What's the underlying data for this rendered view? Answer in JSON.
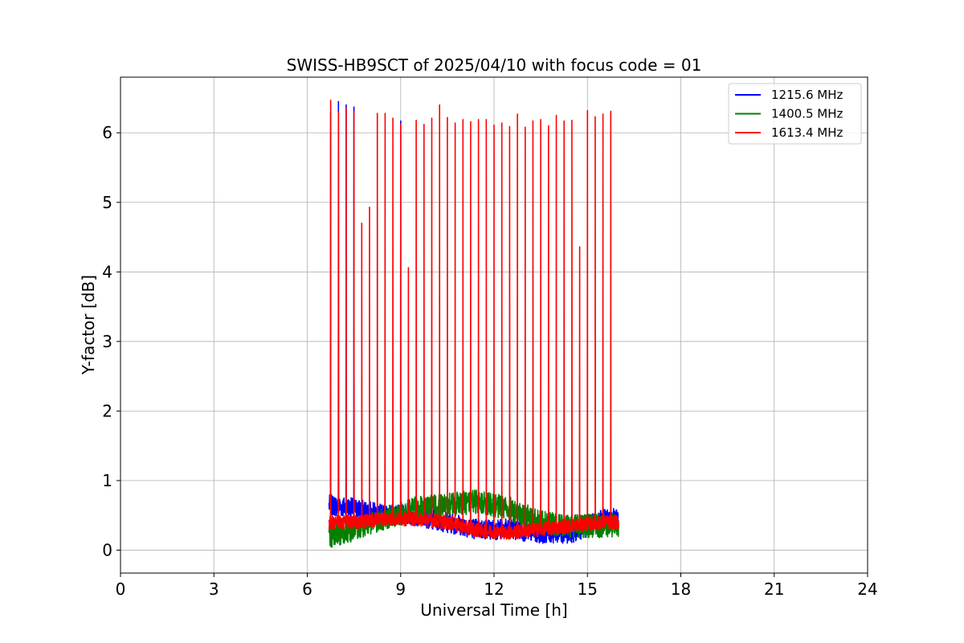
{
  "chart_data": {
    "type": "line",
    "title": "SWISS-HB9SCT of 2025/04/10 with focus code = 01",
    "xlabel": "Universal Time [h]",
    "ylabel": "Y-factor [dB]",
    "xlim": [
      0,
      24
    ],
    "ylim": [
      -0.33,
      6.8
    ],
    "xticks": [
      0,
      3,
      6,
      9,
      12,
      15,
      18,
      21,
      24
    ],
    "yticks": [
      0,
      1,
      2,
      3,
      4,
      5,
      6
    ],
    "grid": true,
    "legend_position": "top-right",
    "series": [
      {
        "name": "1215.6 MHz",
        "color": "#0000ff",
        "baseline": [
          [
            6.7,
            0.65
          ],
          [
            7.5,
            0.6
          ],
          [
            8.5,
            0.5
          ],
          [
            9.5,
            0.5
          ],
          [
            10.5,
            0.4
          ],
          [
            11.5,
            0.3
          ],
          [
            12.5,
            0.3
          ],
          [
            13.5,
            0.25
          ],
          [
            14.5,
            0.25
          ],
          [
            15.5,
            0.45
          ],
          [
            16.0,
            0.45
          ]
        ],
        "noise": 0.15,
        "peaks": [
          [
            6.75,
            6.3
          ],
          [
            7.0,
            6.45
          ],
          [
            7.25,
            6.4
          ],
          [
            7.5,
            6.37
          ],
          [
            9.0,
            6.17
          ]
        ]
      },
      {
        "name": "1400.5 MHz",
        "color": "#008000",
        "baseline": [
          [
            6.7,
            0.2
          ],
          [
            7.5,
            0.3
          ],
          [
            8.5,
            0.45
          ],
          [
            9.5,
            0.6
          ],
          [
            10.5,
            0.65
          ],
          [
            11.5,
            0.7
          ],
          [
            12.5,
            0.6
          ],
          [
            13.5,
            0.4
          ],
          [
            14.5,
            0.35
          ],
          [
            15.5,
            0.35
          ],
          [
            16.0,
            0.35
          ]
        ],
        "noise": 0.17,
        "peaks": []
      },
      {
        "name": "1613.4 MHz",
        "color": "#ff0000",
        "baseline": [
          [
            6.7,
            0.4
          ],
          [
            7.5,
            0.4
          ],
          [
            8.5,
            0.45
          ],
          [
            9.5,
            0.45
          ],
          [
            10.5,
            0.4
          ],
          [
            11.5,
            0.28
          ],
          [
            12.5,
            0.25
          ],
          [
            13.5,
            0.3
          ],
          [
            14.5,
            0.35
          ],
          [
            15.5,
            0.4
          ],
          [
            16.0,
            0.4
          ]
        ],
        "noise": 0.1,
        "peaks": [
          [
            6.75,
            6.47
          ],
          [
            7.0,
            6.3
          ],
          [
            7.25,
            6.35
          ],
          [
            7.5,
            6.3
          ],
          [
            7.75,
            4.7
          ],
          [
            8.0,
            4.93
          ],
          [
            8.25,
            6.28
          ],
          [
            8.5,
            6.28
          ],
          [
            8.75,
            6.21
          ],
          [
            9.0,
            6.12
          ],
          [
            9.25,
            4.06
          ],
          [
            9.5,
            6.18
          ],
          [
            9.75,
            6.12
          ],
          [
            10.0,
            6.21
          ],
          [
            10.25,
            6.4
          ],
          [
            10.5,
            6.22
          ],
          [
            10.75,
            6.14
          ],
          [
            11.0,
            6.19
          ],
          [
            11.25,
            6.16
          ],
          [
            11.5,
            6.19
          ],
          [
            11.75,
            6.19
          ],
          [
            12.0,
            6.11
          ],
          [
            12.25,
            6.14
          ],
          [
            12.5,
            6.09
          ],
          [
            12.75,
            6.27
          ],
          [
            13.0,
            6.08
          ],
          [
            13.25,
            6.17
          ],
          [
            13.5,
            6.19
          ],
          [
            13.75,
            6.1
          ],
          [
            14.0,
            6.25
          ],
          [
            14.25,
            6.17
          ],
          [
            14.5,
            6.18
          ],
          [
            14.75,
            4.36
          ],
          [
            15.0,
            6.32
          ],
          [
            15.25,
            6.23
          ],
          [
            15.5,
            6.27
          ],
          [
            15.75,
            6.31
          ]
        ]
      }
    ]
  }
}
